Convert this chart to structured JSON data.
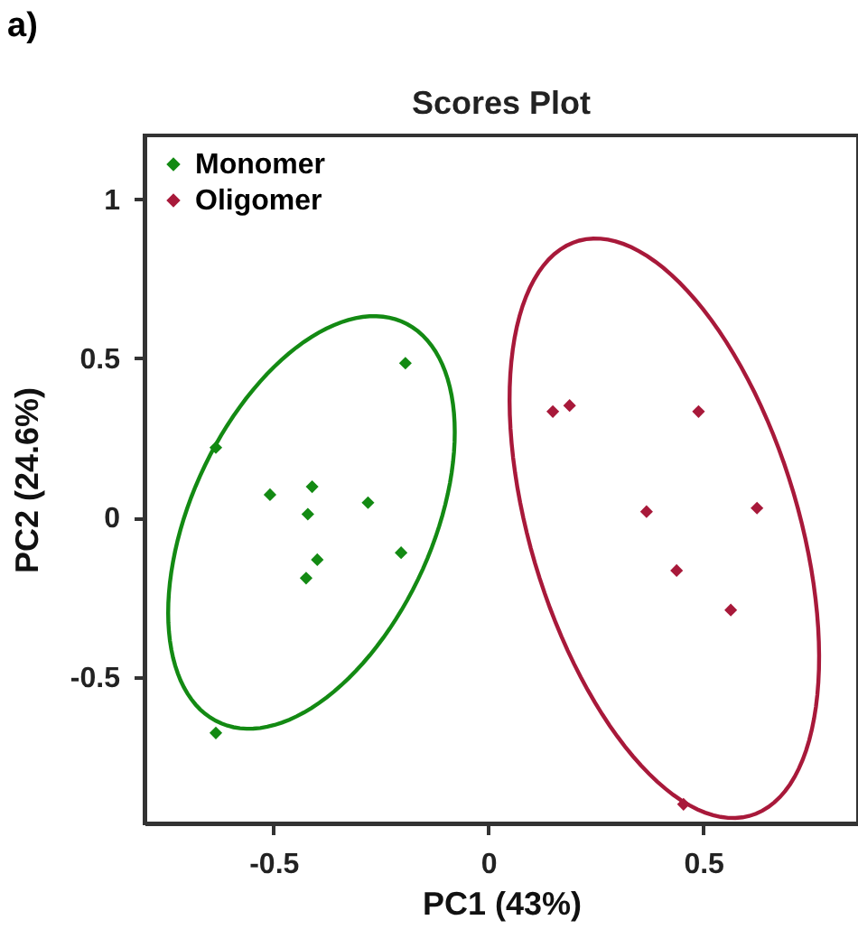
{
  "chart_data": {
    "type": "scatter",
    "title": "Scores Plot",
    "xlabel": "PC1 (43%)",
    "ylabel": "PC2 (24.6%)",
    "annotations": [
      "a)"
    ],
    "xlim": [
      -0.8,
      0.86
    ],
    "ylim": [
      -0.96,
      1.2
    ],
    "xticks": [
      -0.5,
      0,
      0.5
    ],
    "yticks": [
      -0.5,
      0,
      0.5,
      1
    ],
    "grid": false,
    "legend": "top left",
    "marker": "diamond",
    "series": [
      {
        "name": "Monomer",
        "color": "#138a13",
        "x": [
          -0.634,
          -0.508,
          -0.41,
          -0.42,
          -0.398,
          -0.424,
          -0.28,
          -0.193,
          -0.203,
          -0.634
        ],
        "values": [
          0.22,
          0.072,
          0.097,
          0.011,
          -0.132,
          -0.19,
          0.047,
          0.485,
          -0.11,
          -0.676
        ]
      },
      {
        "name": "Oligomer",
        "color": "#a8193a",
        "x": [
          0.15,
          0.189,
          0.489,
          0.368,
          0.625,
          0.438,
          0.564,
          0.454
        ],
        "values": [
          0.333,
          0.352,
          0.333,
          0.019,
          0.03,
          -0.166,
          -0.29,
          -0.9
        ]
      }
    ]
  }
}
